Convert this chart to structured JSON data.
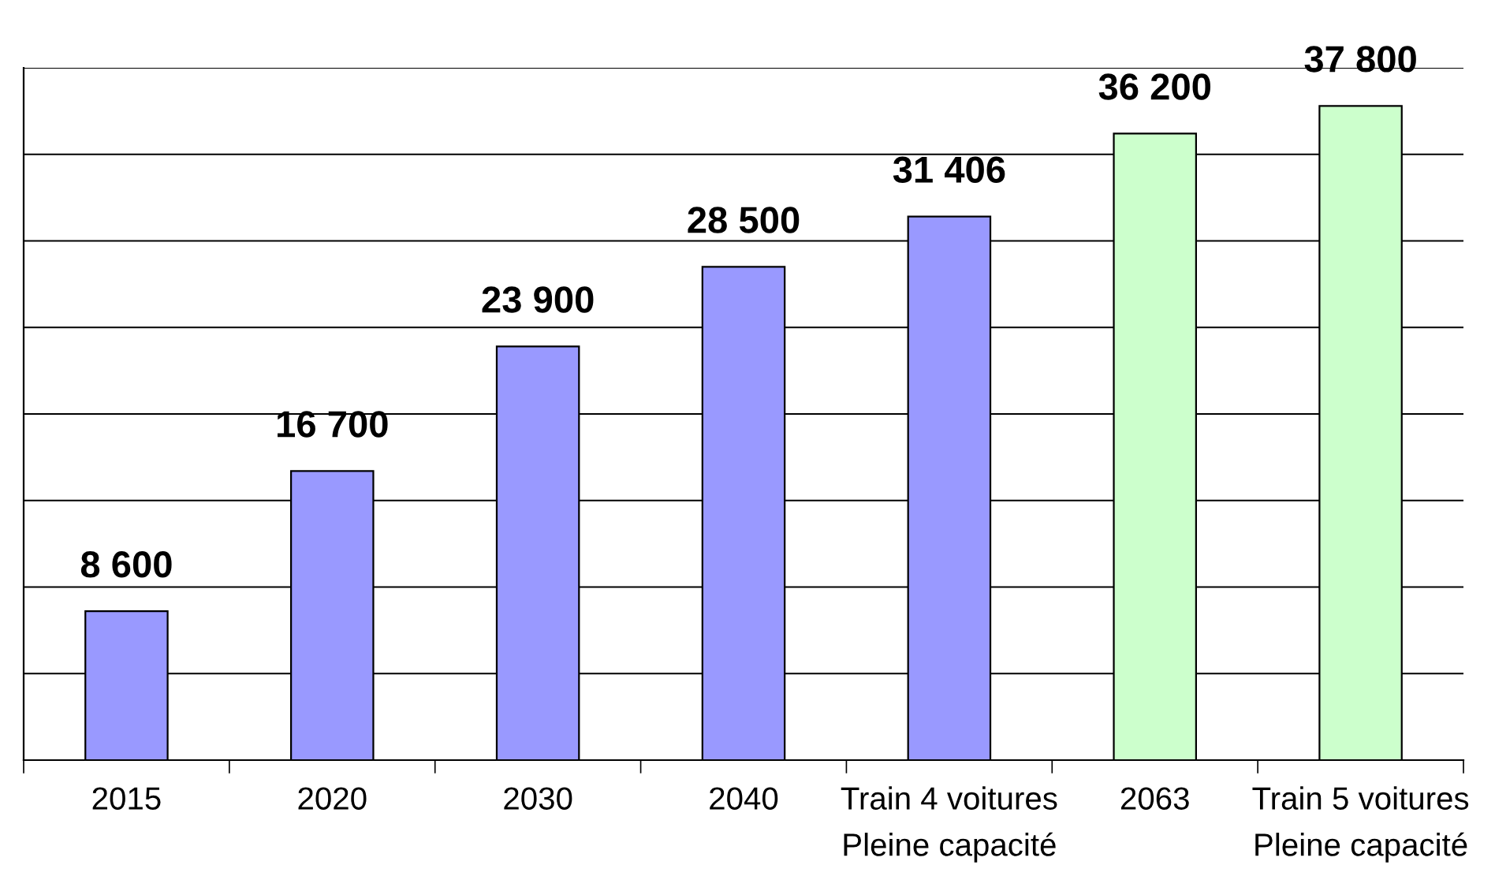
{
  "chart_data": {
    "type": "bar",
    "categories": [
      "2015",
      "2020",
      "2030",
      "2040",
      "Train 4 voitures\nPleine capacité",
      "2063",
      "Train 5 voitures\nPleine capacité"
    ],
    "values": [
      8600,
      16700,
      23900,
      28500,
      31406,
      36200,
      37800
    ],
    "colors": [
      "#9999ff",
      "#9999ff",
      "#9999ff",
      "#9999ff",
      "#9999ff",
      "#ccffcc",
      "#ccffcc"
    ],
    "value_labels": [
      "8 600",
      "16 700",
      "23 900",
      "28 500",
      "31 406",
      "36 200",
      "37 800"
    ],
    "ylim": [
      0,
      40000
    ],
    "yticks": [
      {
        "value": 0,
        "label": null
      },
      {
        "value": 5000,
        "label": null
      },
      {
        "value": 10000,
        "label": null
      },
      {
        "value": 15000,
        "label": null
      },
      {
        "value": 20000,
        "label": null
      },
      {
        "value": 25000,
        "label": null
      },
      {
        "value": 30000,
        "label": null
      },
      {
        "value": 35000,
        "label": null
      },
      {
        "value": 40000,
        "label": null
      }
    ],
    "tick_labels": "x",
    "grid": "y",
    "legend": false
  }
}
